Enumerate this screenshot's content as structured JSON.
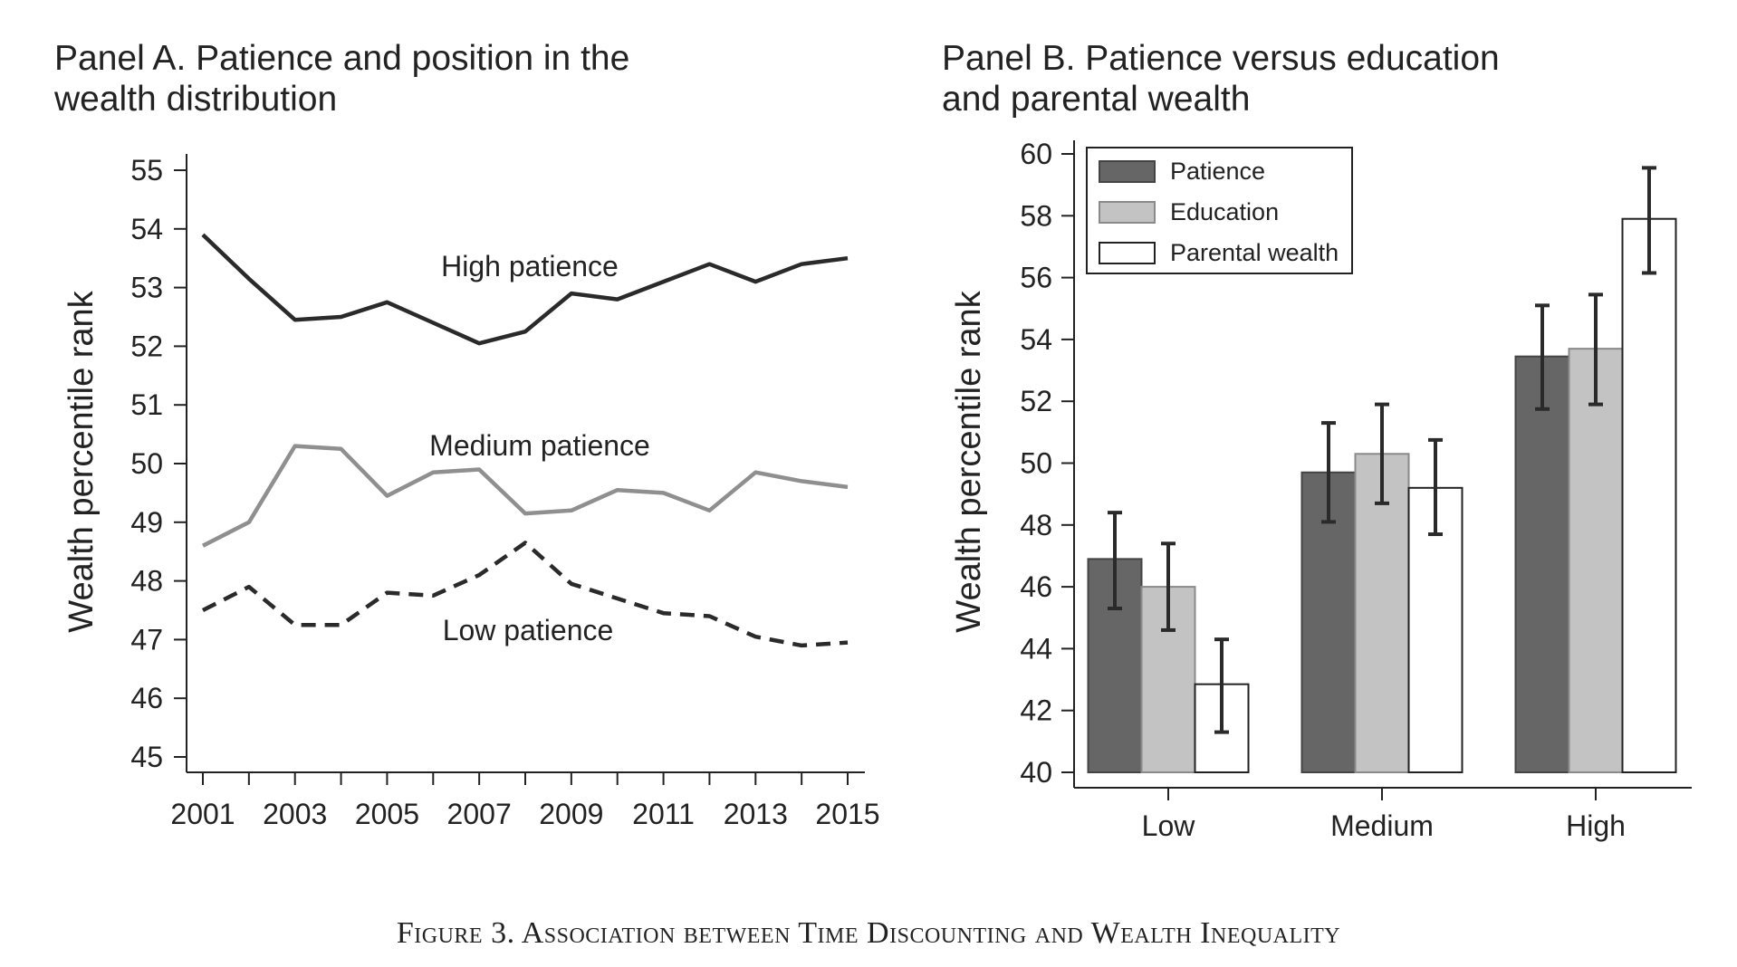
{
  "figure_caption": "Figure 3. Association between Time Discounting and Wealth Inequality",
  "colors": {
    "high_line": "#2a2a2a",
    "medium_line": "#8f8f8f",
    "low_line": "#2a2a2a",
    "patience_bar": "#666666",
    "education_bar": "#c3c3c3",
    "parental_bar": "#ffffff",
    "axis": "#222222"
  },
  "chart_data": [
    {
      "type": "line",
      "title": "Panel A. Patience and position in the wealth distribution",
      "ylabel": "Wealth percentile rank",
      "xlabel": "",
      "x": [
        2001,
        2002,
        2003,
        2004,
        2005,
        2006,
        2007,
        2008,
        2009,
        2010,
        2011,
        2012,
        2013,
        2014,
        2015
      ],
      "x_tick_labels": [
        "2001",
        "2003",
        "2005",
        "2007",
        "2009",
        "2011",
        "2013",
        "2015"
      ],
      "x_tick_values": [
        2001,
        2003,
        2005,
        2007,
        2009,
        2011,
        2013,
        2015
      ],
      "xlim": [
        2001,
        2015
      ],
      "ylim": [
        45,
        55
      ],
      "y_ticks": [
        45,
        46,
        47,
        48,
        49,
        50,
        51,
        52,
        53,
        54,
        55
      ],
      "grid": false,
      "series": [
        {
          "name": "High patience",
          "style": "solid",
          "values": [
            53.9,
            53.15,
            52.45,
            52.5,
            52.75,
            52.4,
            52.05,
            52.25,
            52.9,
            52.8,
            53.1,
            53.4,
            53.1,
            53.4,
            53.5
          ]
        },
        {
          "name": "Medium patience",
          "style": "solid",
          "values": [
            48.6,
            49.0,
            50.3,
            50.25,
            49.45,
            49.85,
            49.9,
            49.15,
            49.2,
            49.55,
            49.5,
            49.2,
            49.85,
            49.7,
            49.6
          ]
        },
        {
          "name": "Low patience",
          "style": "dashed",
          "values": [
            47.5,
            47.9,
            47.25,
            47.25,
            47.8,
            47.75,
            48.1,
            48.65,
            47.95,
            47.7,
            47.45,
            47.4,
            47.05,
            46.9,
            46.95
          ]
        }
      ]
    },
    {
      "type": "bar",
      "title": "Panel B. Patience versus education and parental wealth",
      "ylabel": "Wealth percentile rank",
      "xlabel": "",
      "categories": [
        "Low",
        "Medium",
        "High"
      ],
      "ylim": [
        40,
        60
      ],
      "y_ticks": [
        40,
        42,
        44,
        46,
        48,
        50,
        52,
        54,
        56,
        58,
        60
      ],
      "grid": false,
      "legend_position": "top-left",
      "error_bars": true,
      "series": [
        {
          "name": "Patience",
          "values": [
            46.9,
            49.7,
            53.45
          ],
          "ci_low": [
            45.3,
            48.1,
            51.75
          ],
          "ci_high": [
            48.4,
            51.3,
            55.1
          ]
        },
        {
          "name": "Education",
          "values": [
            46.0,
            50.3,
            53.7
          ],
          "ci_low": [
            44.6,
            48.7,
            51.9
          ],
          "ci_high": [
            47.4,
            51.9,
            55.45
          ]
        },
        {
          "name": "Parental wealth",
          "values": [
            42.85,
            49.2,
            57.9
          ],
          "ci_low": [
            41.3,
            47.7,
            56.15
          ],
          "ci_high": [
            44.3,
            50.75,
            59.55
          ]
        }
      ]
    }
  ]
}
